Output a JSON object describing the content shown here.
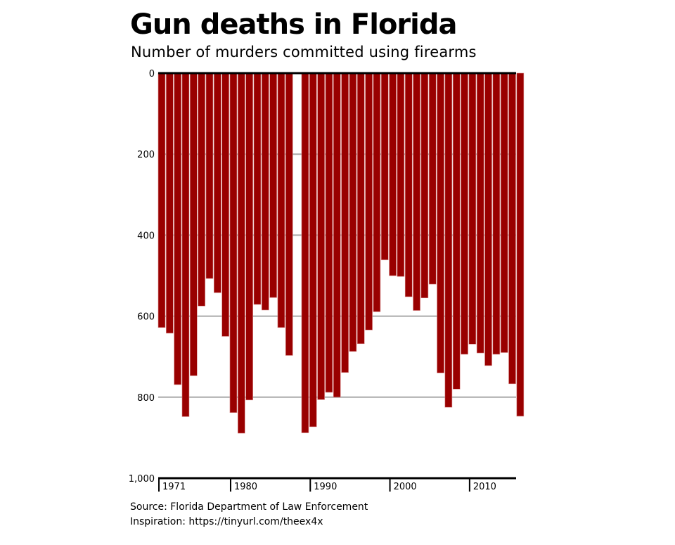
{
  "chart_data": {
    "type": "bar",
    "orientation": "vertical-inverted",
    "title": "Gun deaths in Florida",
    "subtitle": "Number of murders committed using firearms",
    "xlabel": "",
    "ylabel": "",
    "ylim": [
      0,
      1000
    ],
    "y_inverted": true,
    "xlim": [
      1971,
      2016
    ],
    "grid": true,
    "y_ticks": [
      {
        "value": 0,
        "label": "0"
      },
      {
        "value": 200,
        "label": "200"
      },
      {
        "value": 400,
        "label": "400"
      },
      {
        "value": 600,
        "label": "600"
      },
      {
        "value": 800,
        "label": "800"
      },
      {
        "value": 1000,
        "label": "1,000"
      }
    ],
    "x_ticks": [
      {
        "value": 1971,
        "label": "1971"
      },
      {
        "value": 1980,
        "label": "1980"
      },
      {
        "value": 1990,
        "label": "1990"
      },
      {
        "value": 2000,
        "label": "2000"
      },
      {
        "value": 2010,
        "label": "2010"
      }
    ],
    "bar_color": "#990000",
    "categories": [
      1971,
      1972,
      1973,
      1974,
      1975,
      1976,
      1977,
      1978,
      1979,
      1980,
      1981,
      1982,
      1983,
      1984,
      1985,
      1986,
      1987,
      1988,
      1989,
      1990,
      1991,
      1992,
      1993,
      1994,
      1995,
      1996,
      1997,
      1998,
      1999,
      2000,
      2001,
      2002,
      2003,
      2004,
      2005,
      2006,
      2007,
      2008,
      2009,
      2010,
      2011,
      2012,
      2013,
      2014,
      2015,
      2016
    ],
    "values": [
      628,
      642,
      769,
      848,
      747,
      575,
      507,
      542,
      650,
      838,
      889,
      807,
      571,
      585,
      554,
      628,
      697,
      null,
      888,
      873,
      806,
      788,
      800,
      739,
      687,
      668,
      634,
      589,
      461,
      500,
      502,
      552,
      586,
      555,
      521,
      740,
      825,
      780,
      694,
      669,
      691,
      722,
      694,
      690,
      767,
      847
    ],
    "notes": [
      "No bar shown for 1988"
    ]
  },
  "footer": {
    "source": "Source: Florida Department of Law Enforcement",
    "inspiration": "Inspiration: https://tinyurl.com/theex4x"
  }
}
